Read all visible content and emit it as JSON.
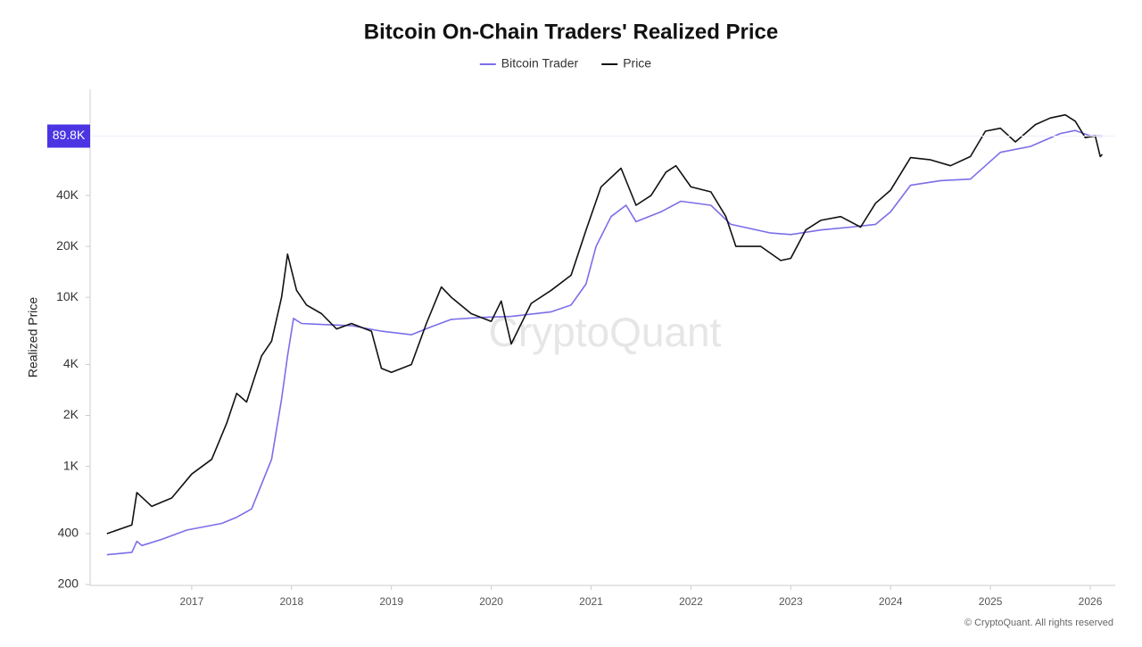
{
  "chart_data": {
    "type": "line",
    "title": "Bitcoin On-Chain Traders' Realized Price",
    "y_label": "Realized Price",
    "watermark": "CryptoQuant",
    "footer": "© CryptoQuant. All rights reserved",
    "log_scale": true,
    "xlim": [
      2016,
      2026.25
    ],
    "xticks": [
      2017,
      2018,
      2019,
      2020,
      2021,
      2022,
      2023,
      2024,
      2025,
      2026
    ],
    "ylim": [
      200,
      170000
    ],
    "yticks": [
      200,
      400,
      {
        "value": 1000,
        "label": "1K"
      },
      {
        "value": 2000,
        "label": "2K"
      },
      {
        "value": 4000,
        "label": "4K"
      },
      {
        "value": 10000,
        "label": "10K"
      },
      {
        "value": 20000,
        "label": "20K"
      },
      {
        "value": 40000,
        "label": "40K"
      }
    ],
    "marker": {
      "value": 89800,
      "label": "89.8K",
      "color": "#4b35e3"
    },
    "series": [
      {
        "name": "Bitcoin Trader",
        "color": "#7b6ee8",
        "x": [
          2016.15,
          2016.4,
          2016.45,
          2016.5,
          2016.7,
          2016.95,
          2017.3,
          2017.45,
          2017.6,
          2017.8,
          2017.9,
          2017.96,
          2018.02,
          2018.1,
          2018.3,
          2018.6,
          2018.9,
          2019.2,
          2019.4,
          2019.6,
          2019.9,
          2020.2,
          2020.6,
          2020.8,
          2020.95,
          2021.05,
          2021.2,
          2021.35,
          2021.45,
          2021.7,
          2021.9,
          2022.2,
          2022.4,
          2022.8,
          2023.0,
          2023.3,
          2023.6,
          2023.85,
          2024.0,
          2024.2,
          2024.5,
          2024.8,
          2024.95,
          2025.1,
          2025.4,
          2025.7,
          2025.85,
          2026.0,
          2026.12
        ],
        "values": [
          300,
          310,
          360,
          340,
          370,
          420,
          460,
          500,
          560,
          1100,
          2500,
          4500,
          7500,
          7000,
          6900,
          6800,
          6300,
          6000,
          6700,
          7400,
          7600,
          7700,
          8200,
          9000,
          12000,
          20000,
          30000,
          35000,
          28000,
          32000,
          37000,
          35000,
          27000,
          24000,
          23500,
          25000,
          26000,
          27000,
          32000,
          46000,
          49000,
          50000,
          60000,
          72000,
          78000,
          93000,
          97000,
          90000,
          89800
        ]
      },
      {
        "name": "Price",
        "color": "#111111",
        "x": [
          2016.15,
          2016.4,
          2016.45,
          2016.6,
          2016.8,
          2017.0,
          2017.2,
          2017.35,
          2017.45,
          2017.55,
          2017.7,
          2017.8,
          2017.9,
          2017.96,
          2018.05,
          2018.15,
          2018.3,
          2018.45,
          2018.6,
          2018.8,
          2018.9,
          2019.0,
          2019.2,
          2019.35,
          2019.5,
          2019.6,
          2019.8,
          2020.0,
          2020.1,
          2020.2,
          2020.4,
          2020.6,
          2020.8,
          2020.95,
          2021.1,
          2021.3,
          2021.45,
          2021.6,
          2021.75,
          2021.85,
          2022.0,
          2022.2,
          2022.35,
          2022.45,
          2022.7,
          2022.9,
          2023.0,
          2023.15,
          2023.3,
          2023.5,
          2023.7,
          2023.85,
          2024.0,
          2024.2,
          2024.4,
          2024.6,
          2024.8,
          2024.95,
          2025.1,
          2025.25,
          2025.45,
          2025.6,
          2025.75,
          2025.85,
          2025.95,
          2026.05,
          2026.1,
          2026.12
        ],
        "values": [
          400,
          450,
          700,
          580,
          650,
          900,
          1100,
          1800,
          2700,
          2400,
          4500,
          5500,
          10000,
          18000,
          11000,
          9000,
          8000,
          6500,
          7000,
          6300,
          3800,
          3600,
          4000,
          7000,
          11500,
          10000,
          8000,
          7200,
          9500,
          5300,
          9200,
          11000,
          13500,
          25000,
          45000,
          58000,
          35000,
          40000,
          55000,
          60000,
          45000,
          42000,
          30000,
          20000,
          20000,
          16500,
          17000,
          25000,
          28500,
          30000,
          26000,
          36000,
          43000,
          67000,
          65000,
          60000,
          68000,
          96000,
          100000,
          83000,
          105000,
          115000,
          120000,
          110000,
          88000,
          90000,
          68000,
          70000
        ]
      }
    ]
  }
}
